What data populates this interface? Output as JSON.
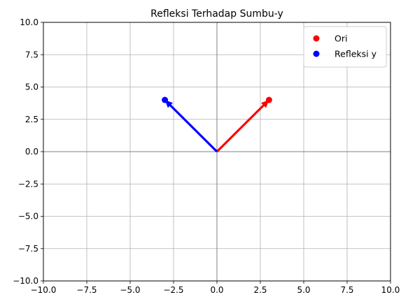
{
  "chart_data": {
    "type": "scatter",
    "title": "Refleksi Terhadap Sumbu-y",
    "xlabel": "",
    "ylabel": "",
    "xlim": [
      -10,
      10
    ],
    "ylim": [
      -10,
      10
    ],
    "grid": true,
    "xticks": [
      -10,
      -7.5,
      -5,
      -2.5,
      0,
      2.5,
      5,
      7.5,
      10
    ],
    "yticks": [
      -10,
      -7.5,
      -5,
      -2.5,
      0,
      2.5,
      5,
      7.5,
      10
    ],
    "xtick_labels": [
      "−10.0",
      "−7.5",
      "−5.0",
      "−2.5",
      "0.0",
      "2.5",
      "5.0",
      "7.5",
      "10.0"
    ],
    "ytick_labels": [
      "−10.0",
      "−7.5",
      "−5.0",
      "−2.5",
      "0.0",
      "2.5",
      "5.0",
      "7.5",
      "10.0"
    ],
    "legend_position": "top-right",
    "series": [
      {
        "name": "Ori",
        "color": "#ff0000",
        "points": [
          [
            3,
            4
          ]
        ],
        "vector_from": [
          0,
          0
        ]
      },
      {
        "name": "Refleksi y",
        "color": "#0000ff",
        "points": [
          [
            -3,
            4
          ]
        ],
        "vector_from": [
          0,
          0
        ]
      }
    ]
  }
}
